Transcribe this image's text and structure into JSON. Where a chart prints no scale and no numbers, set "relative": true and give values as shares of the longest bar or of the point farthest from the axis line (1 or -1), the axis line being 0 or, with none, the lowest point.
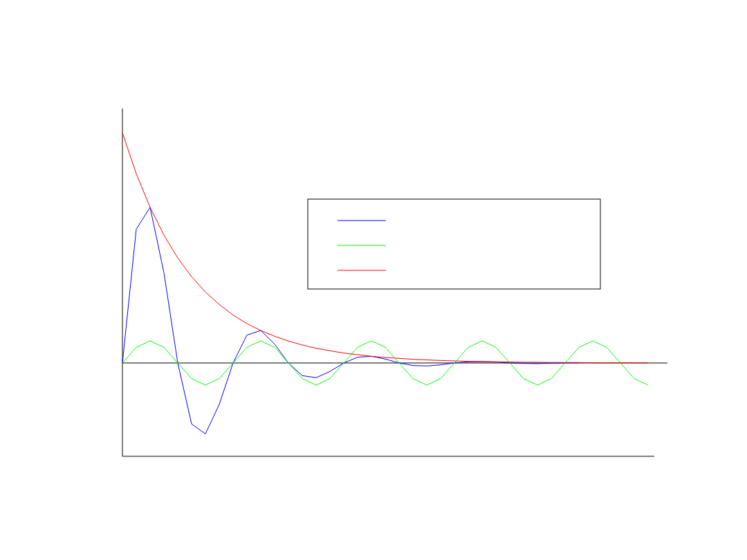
{
  "chart_data": {
    "type": "line",
    "relative": true,
    "grid": false,
    "marker": "none",
    "line_style": "solid",
    "categories": [
      null,
      null,
      null,
      null,
      null,
      null,
      null,
      null,
      null,
      null,
      null,
      null,
      null,
      null,
      null,
      null,
      null,
      null,
      null,
      null,
      null,
      null,
      null,
      null,
      null,
      null,
      null,
      null,
      null,
      null,
      null,
      null,
      null,
      null,
      null,
      null,
      null,
      null,
      null
    ],
    "series": [
      {
        "color": "#0000ff",
        "values": [
          0,
          0.581,
          0.676,
          0.392,
          0,
          -0.265,
          -0.308,
          -0.18,
          0,
          0.121,
          0.141,
          0.082,
          0,
          -0.055,
          -0.064,
          -0.037,
          0,
          0.025,
          0.029,
          0.017,
          0,
          -0.011,
          -0.013,
          -0.008,
          0,
          0.005,
          0.006,
          0.004,
          0,
          -0.002,
          -0.003,
          -0.001,
          0,
          0.001,
          null,
          null,
          null,
          null,
          null
        ]
      },
      {
        "color": "#00ff00",
        "values": [
          0,
          0.068,
          0.096,
          0.068,
          0,
          -0.068,
          -0.096,
          -0.068,
          0,
          0.068,
          0.096,
          0.068,
          0,
          -0.068,
          -0.096,
          -0.068,
          0,
          0.068,
          0.096,
          0.068,
          0,
          -0.068,
          -0.096,
          -0.068,
          0,
          0.068,
          0.096,
          0.068,
          0,
          -0.068,
          -0.096,
          -0.068,
          0,
          0.068,
          0.096,
          0.068,
          0,
          -0.068,
          -0.096
        ]
      },
      {
        "color": "#ff0000",
        "values": [
          1,
          0.822,
          0.676,
          0.555,
          0.456,
          0.375,
          0.308,
          0.254,
          0.208,
          0.171,
          0.141,
          0.116,
          0.095,
          0.078,
          0.064,
          0.053,
          0.043,
          0.036,
          0.029,
          0.024,
          0.02,
          0.016,
          0.013,
          0.011,
          0.009,
          0.007,
          0.006,
          0.005,
          0.004,
          0.003,
          0.003,
          0.002,
          0.002,
          0.002,
          0.001,
          0.001,
          0.001,
          0.001,
          0.001
        ]
      }
    ]
  }
}
